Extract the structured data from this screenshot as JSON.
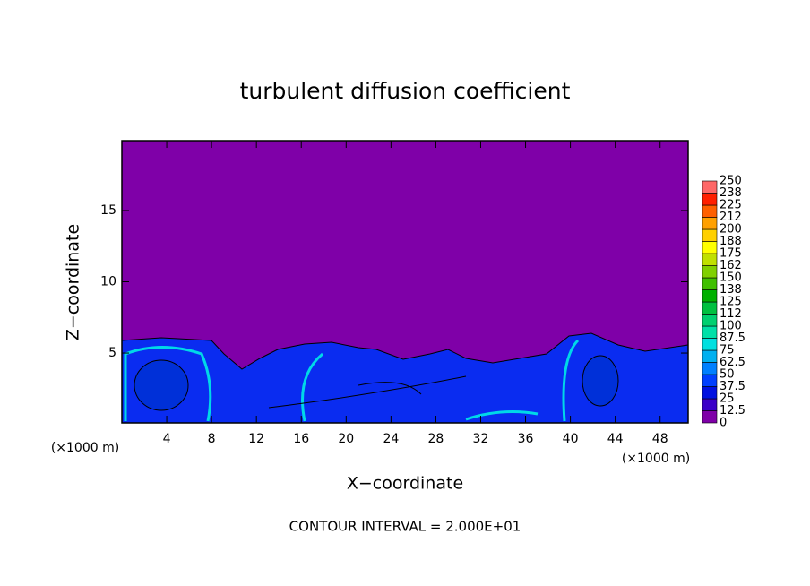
{
  "chart_data": {
    "type": "contour",
    "title": "turbulent diffusion coefficient",
    "xlabel": "X−coordinate",
    "ylabel": "Z−coordinate",
    "x_unit_labels": [
      "(×1000 m)",
      "(×1000 m)"
    ],
    "footnote": "CONTOUR INTERVAL = 2.000E+01",
    "xlim": [
      0,
      50.5
    ],
    "xticks": [
      4,
      8,
      12,
      16,
      20,
      24,
      28,
      32,
      36,
      40,
      44,
      48
    ],
    "ylim": [
      0.1,
      19.9
    ],
    "yticks": [
      5,
      10,
      15
    ],
    "colorbar": {
      "levels": [
        0,
        12.5,
        25,
        37.5,
        50,
        62.5,
        75,
        87.5,
        100,
        {
          "value": 112.5,
          "label": "112"
        },
        125,
        {
          "value": 137.5,
          "label": "138"
        },
        150,
        {
          "value": 162.5,
          "label": "162"
        },
        175,
        {
          "value": 187.5,
          "label": "188"
        },
        200,
        {
          "value": 212.5,
          "label": "212"
        },
        225,
        {
          "value": 237.5,
          "label": "238"
        },
        250
      ],
      "colors": [
        "#7f00a8",
        "#3a00c8",
        "#0010e0",
        "#0040ff",
        "#0080ff",
        "#00b0f0",
        "#00e0e0",
        "#00e0a8",
        "#00d070",
        "#00c040",
        "#00b000",
        "#40c000",
        "#80d000",
        "#c0e000",
        "#ffff00",
        "#ffd000",
        "#ffa000",
        "#ff6000",
        "#ff2000",
        "#ff6868"
      ]
    }
  }
}
